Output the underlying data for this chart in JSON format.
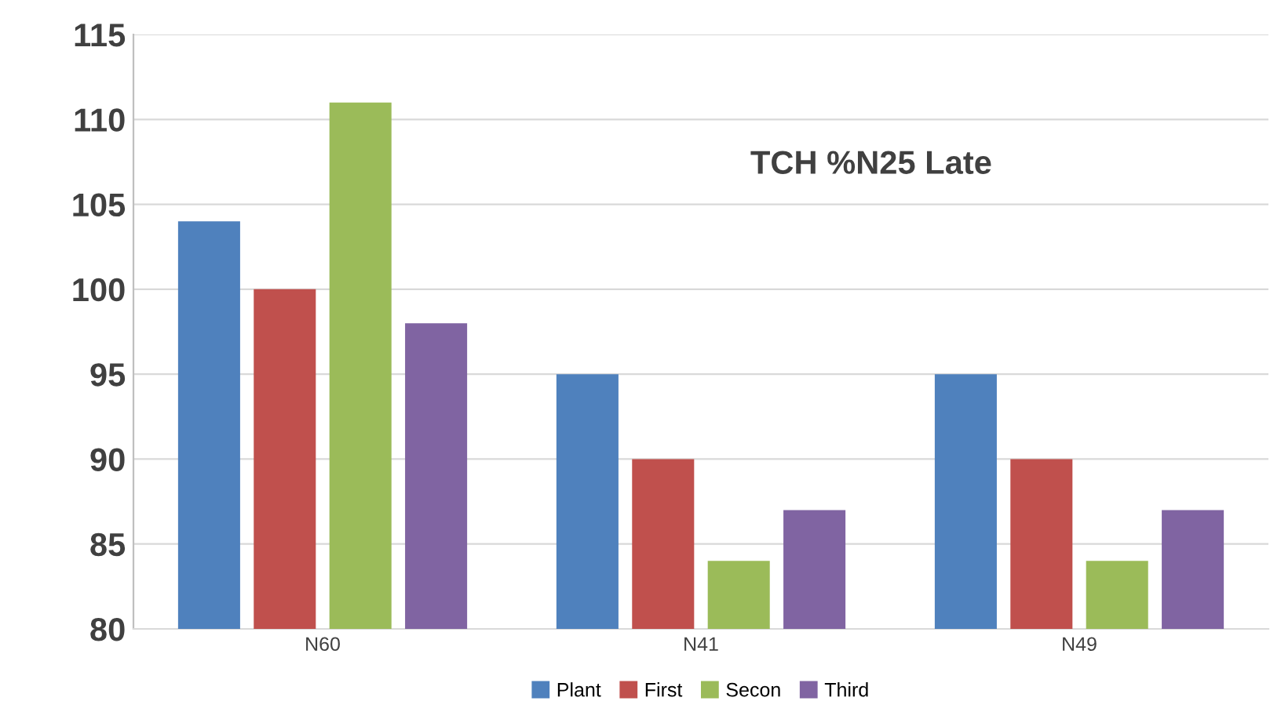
{
  "chart_data": {
    "type": "bar",
    "title": "TCH %N25 Late",
    "categories": [
      "N60",
      "N41",
      "N49"
    ],
    "series": [
      {
        "name": "Plant",
        "color": "#4f81bd",
        "values": [
          104,
          95,
          95
        ]
      },
      {
        "name": "First",
        "color": "#c0504d",
        "values": [
          100,
          90,
          90
        ]
      },
      {
        "name": "Secon",
        "color": "#9bbb59",
        "values": [
          111,
          84,
          84
        ]
      },
      {
        "name": "Third",
        "color": "#8064a2",
        "values": [
          98,
          87,
          87
        ]
      }
    ],
    "ylim": [
      80,
      115
    ],
    "yticks": [
      80,
      85,
      90,
      95,
      100,
      105,
      110,
      115
    ],
    "grid": "y",
    "legend": "bottom"
  }
}
